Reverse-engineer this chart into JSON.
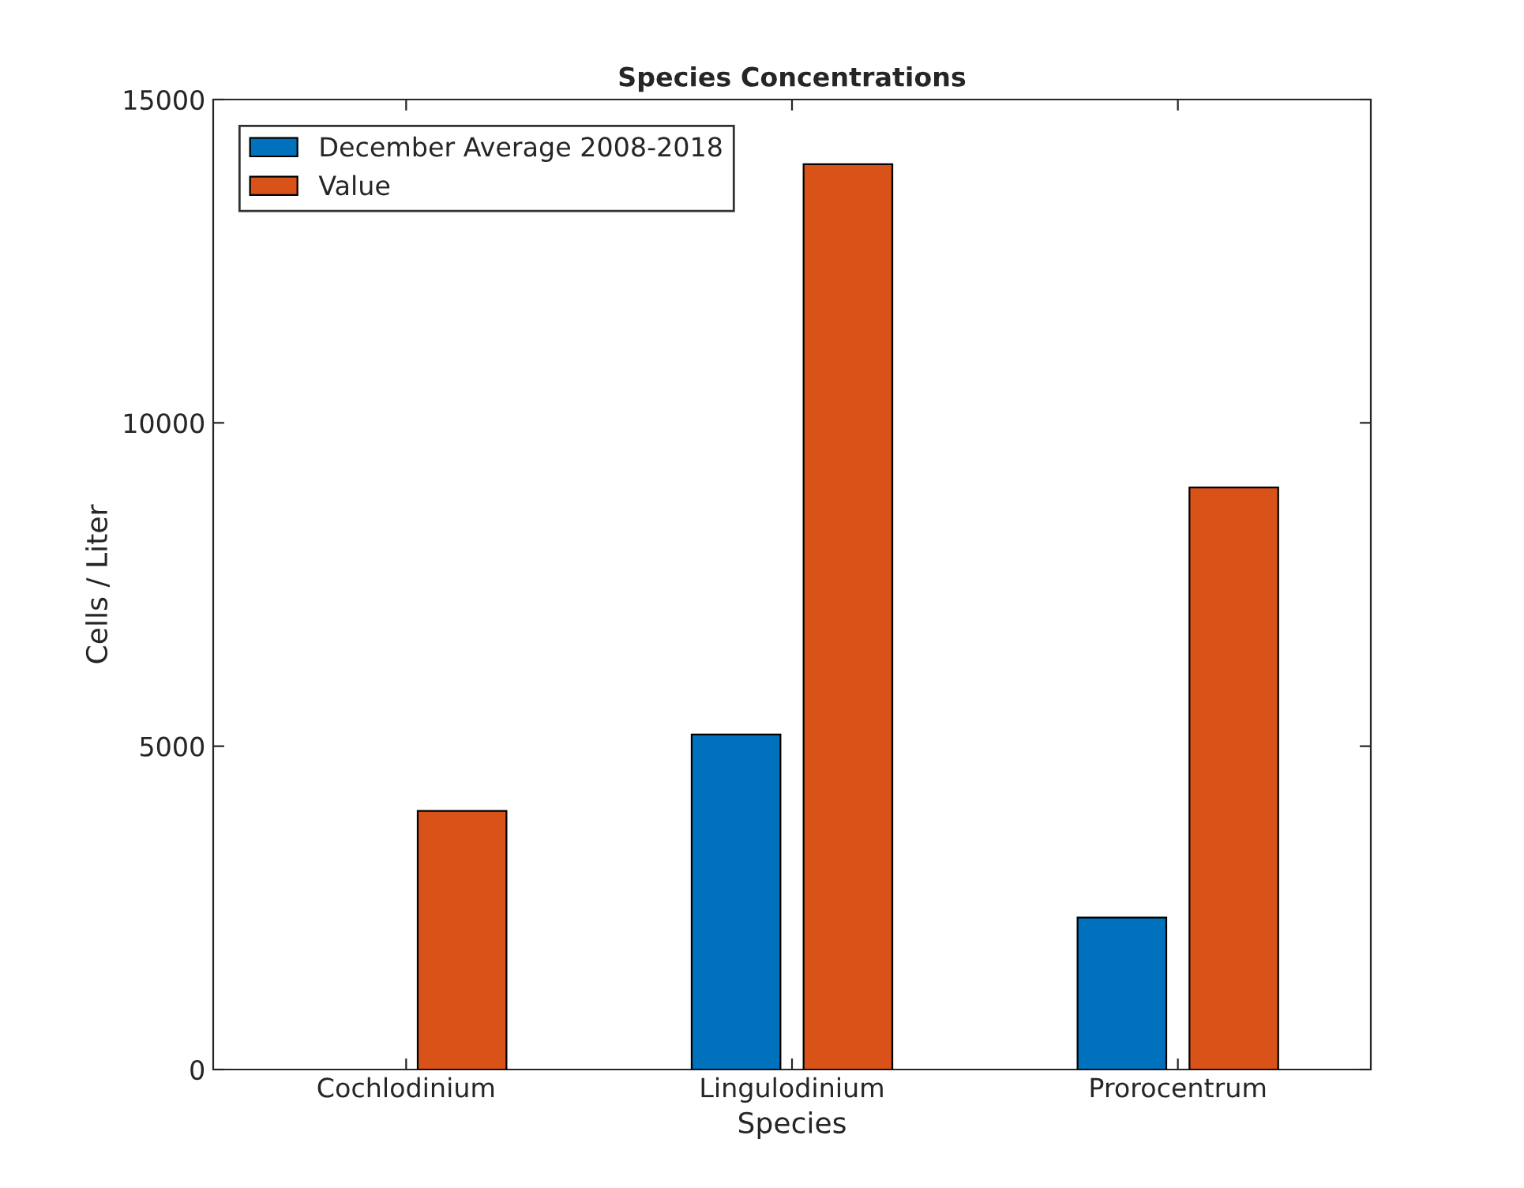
{
  "chart_data": {
    "type": "bar",
    "title": "Species Concentrations",
    "xlabel": "Species",
    "ylabel": "Cells / Liter",
    "categories": [
      "Cochlodinium",
      "Lingulodinium",
      "Prorocentrum"
    ],
    "series": [
      {
        "name": "December Average 2008-2018",
        "color": "#0072bd",
        "values": [
          null,
          5180,
          2350
        ]
      },
      {
        "name": "Value",
        "color": "#d95319",
        "values": [
          4000,
          14000,
          9000
        ]
      }
    ],
    "ylim": [
      0,
      15000
    ],
    "yticks": [
      0,
      5000,
      10000,
      15000
    ],
    "grid": false,
    "legend": "top left"
  }
}
